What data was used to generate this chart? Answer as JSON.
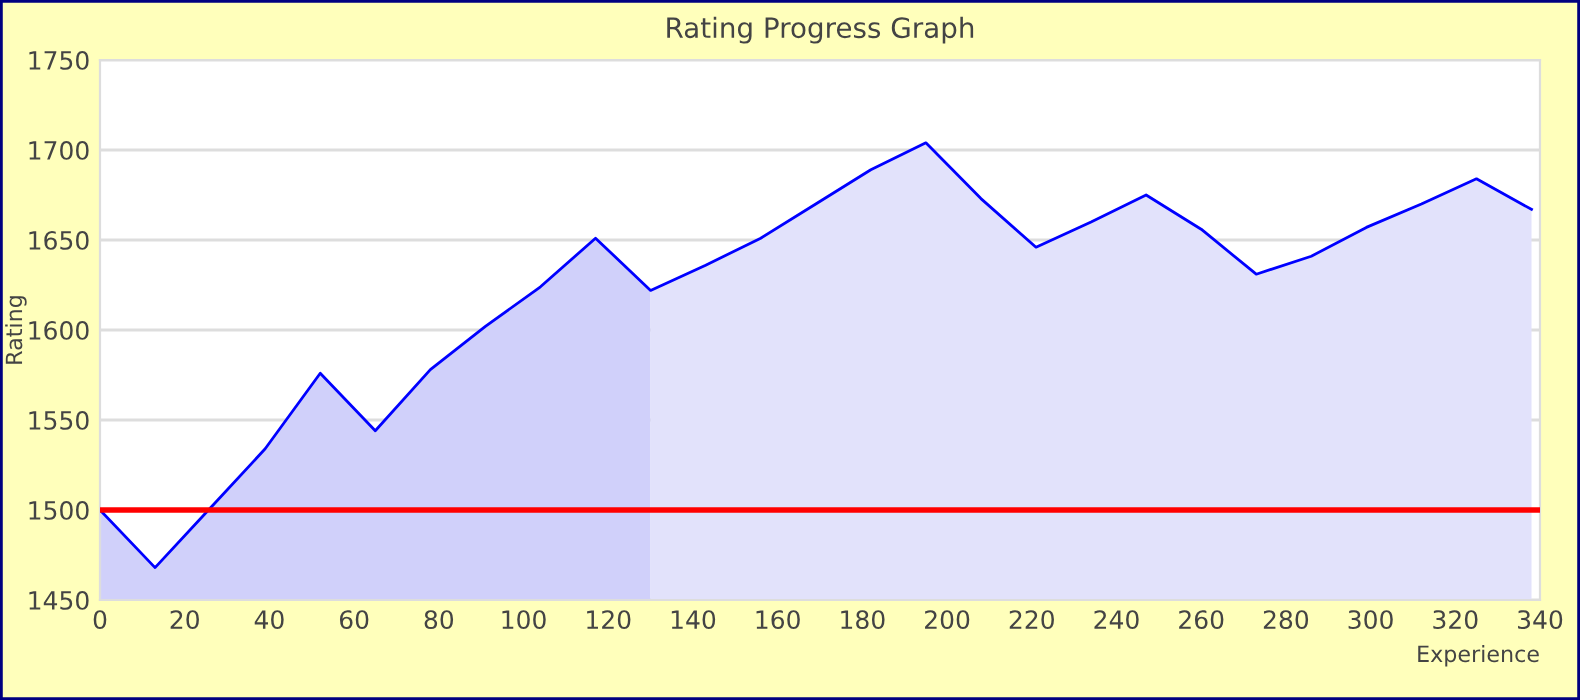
{
  "chart_data": {
    "type": "area",
    "title": "Rating Progress Graph",
    "xlabel": "Experience",
    "ylabel": "Rating",
    "series": [
      {
        "color": "#d0d0fa",
        "x": [
          0,
          13,
          26,
          39,
          52,
          65,
          78,
          91,
          104,
          117,
          130
        ],
        "values": [
          1500,
          1468,
          1501,
          1534,
          1576,
          1544,
          1578,
          1602,
          1624,
          1651,
          1622
        ]
      },
      {
        "color": "#e2e2fb",
        "x": [
          130,
          143,
          156,
          169,
          182,
          195,
          208,
          221,
          234,
          247,
          260,
          273,
          286,
          299,
          312,
          325,
          338
        ],
        "values": [
          1622,
          1636,
          1651,
          1670,
          1689,
          1704,
          1673,
          1646,
          1660,
          1675,
          1656,
          1631,
          1641,
          1657,
          1670,
          1684,
          1667
        ]
      },
      {
        "type": "line",
        "color": "#0000ff",
        "x": [
          0,
          13,
          26,
          39,
          52,
          65,
          78,
          91,
          104,
          117,
          130,
          143,
          156,
          169,
          182,
          195,
          208,
          221,
          234,
          247,
          260,
          273,
          286,
          299,
          312,
          325,
          338
        ],
        "values": [
          1500,
          1468,
          1501,
          1534,
          1576,
          1544,
          1578,
          1602,
          1624,
          1651,
          1622,
          1636,
          1651,
          1670,
          1689,
          1704,
          1673,
          1646,
          1660,
          1675,
          1656,
          1631,
          1641,
          1657,
          1670,
          1684,
          1667
        ]
      }
    ],
    "xlim": [
      0,
      340
    ],
    "xticks": [
      0,
      20,
      40,
      60,
      80,
      100,
      120,
      140,
      160,
      180,
      200,
      220,
      240,
      260,
      280,
      300,
      320,
      340
    ],
    "ylim": [
      1450,
      1750
    ],
    "yticks": [
      1450,
      1500,
      1550,
      1600,
      1650,
      1700,
      1750
    ],
    "ref_lines": [
      {
        "axis": "y",
        "value": 1500,
        "color": "#ff0000"
      }
    ],
    "grid": "y",
    "legend": false,
    "marker": "none",
    "line_style": "solid"
  }
}
